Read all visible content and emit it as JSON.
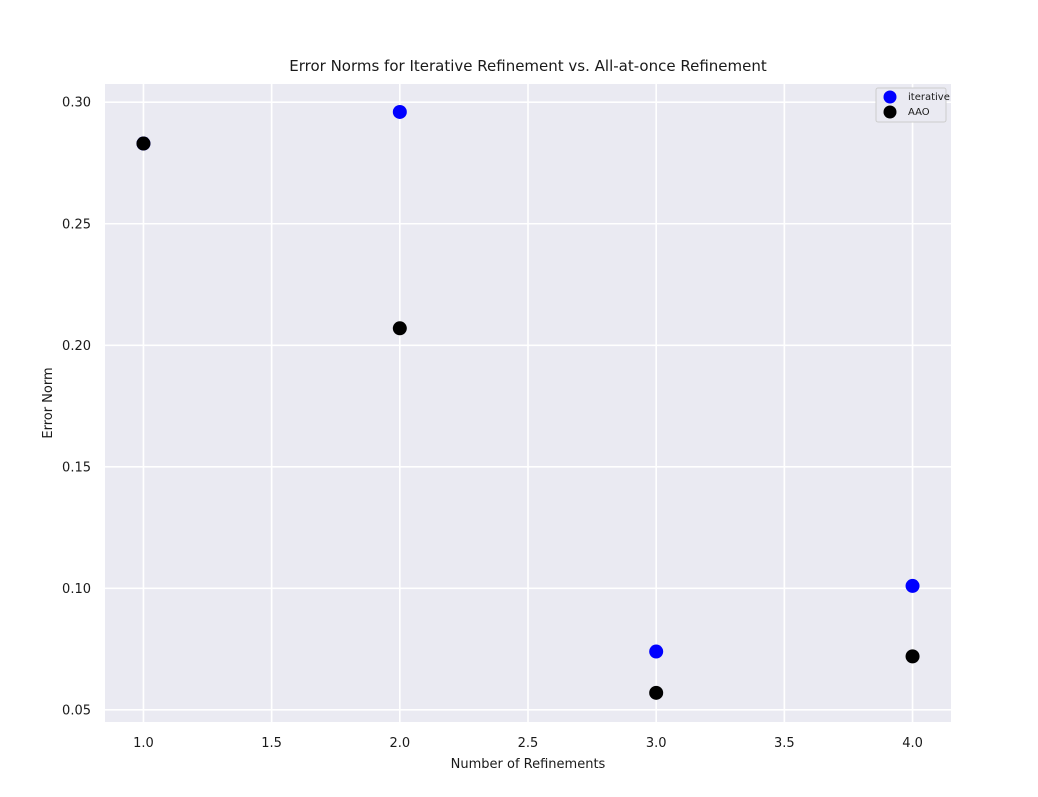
{
  "chart_data": {
    "type": "scatter",
    "title": "Error Norms for Iterative Refinement vs. All-at-once Refinement",
    "xlabel": "Number of Refinements",
    "ylabel": "Error Norm",
    "xlim": [
      0.85,
      4.15
    ],
    "ylim": [
      0.045,
      0.3075
    ],
    "xticks": [
      1.0,
      1.5,
      2.0,
      2.5,
      3.0,
      3.5,
      4.0
    ],
    "xtick_labels": [
      "1.0",
      "1.5",
      "2.0",
      "2.5",
      "3.0",
      "3.5",
      "4.0"
    ],
    "yticks": [
      0.05,
      0.1,
      0.15,
      0.2,
      0.25,
      0.3
    ],
    "ytick_labels": [
      "0.05",
      "0.10",
      "0.15",
      "0.20",
      "0.25",
      "0.30"
    ],
    "grid": true,
    "legend_position": "top-right",
    "series": [
      {
        "name": "iterative",
        "color": "#0000ff",
        "points": [
          {
            "x": 1,
            "y": 0.283
          },
          {
            "x": 2,
            "y": 0.296
          },
          {
            "x": 3,
            "y": 0.074
          },
          {
            "x": 4,
            "y": 0.101
          }
        ]
      },
      {
        "name": "AAO",
        "color": "#000000",
        "points": [
          {
            "x": 1,
            "y": 0.283
          },
          {
            "x": 2,
            "y": 0.207
          },
          {
            "x": 3,
            "y": 0.057
          },
          {
            "x": 4,
            "y": 0.072
          }
        ]
      }
    ]
  }
}
